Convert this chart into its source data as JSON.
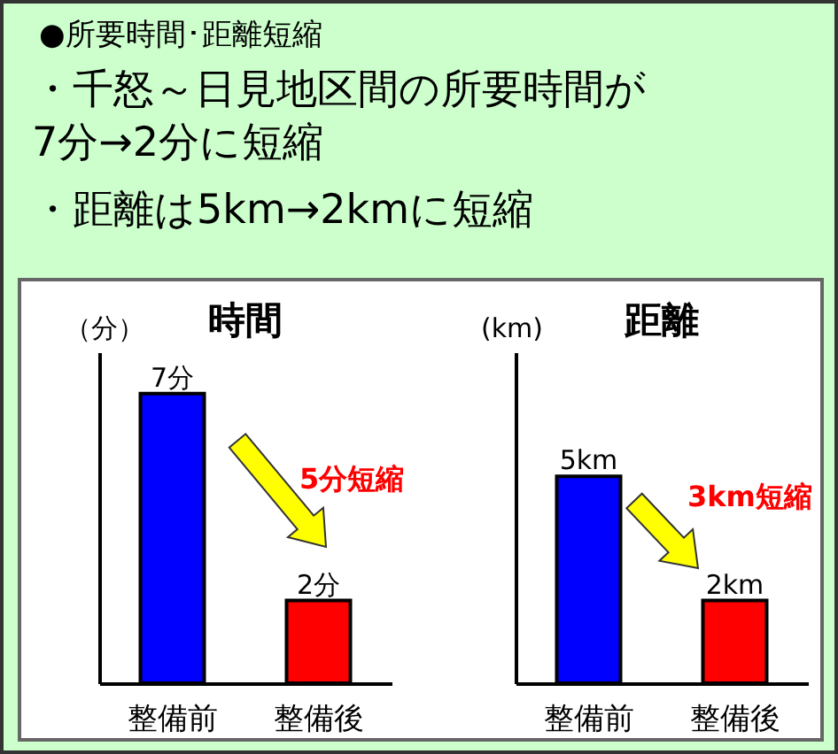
{
  "chart_data": [
    {
      "type": "other",
      "title": "●所要時間･距離短縮",
      "annotations": [
        "・千怒～日見地区間の所要時間が\n7分→2分に短縮",
        "・距離は5km→2kmに短縮"
      ]
    },
    {
      "type": "bar",
      "title": "時間",
      "ylabel": "（分）",
      "categories": [
        "整備前",
        "整備後"
      ],
      "values": [
        7,
        2
      ],
      "colors": [
        "#0000ff",
        "#ff0000"
      ],
      "value_labels": [
        "7分",
        "2分"
      ],
      "ylim": [
        0,
        8
      ],
      "tick_labels": "x",
      "annotations": [
        "5分短縮"
      ]
    },
    {
      "type": "bar",
      "title": "距離",
      "ylabel": "(km)",
      "categories": [
        "整備前",
        "整備後"
      ],
      "values": [
        5,
        2
      ],
      "colors": [
        "#0000ff",
        "#ff0000"
      ],
      "value_labels": [
        "5km",
        "2km"
      ],
      "ylim": [
        0,
        8
      ],
      "tick_labels": "x",
      "annotations": [
        "3km短縮"
      ]
    }
  ]
}
